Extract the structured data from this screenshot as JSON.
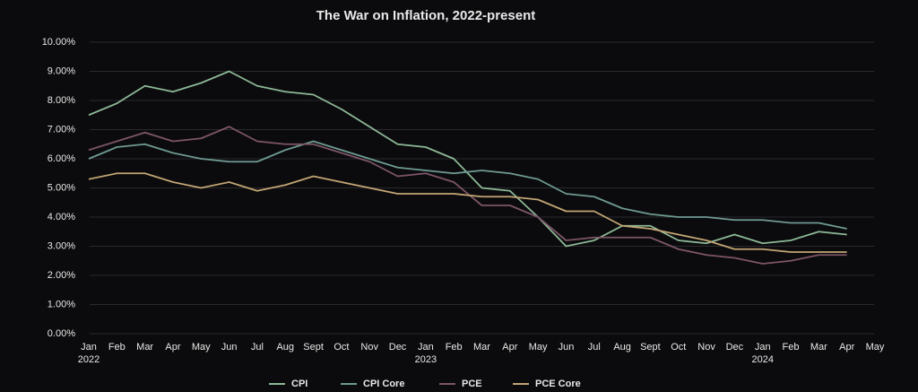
{
  "chart_data": {
    "type": "line",
    "title": "The War on Inflation, 2022-present",
    "categories": [
      "Jan",
      "Feb",
      "Mar",
      "Apr",
      "May",
      "Jun",
      "Jul",
      "Aug",
      "Sept",
      "Oct",
      "Nov",
      "Dec",
      "Jan",
      "Feb",
      "Mar",
      "Apr",
      "May",
      "Jun",
      "Jul",
      "Aug",
      "Sept",
      "Oct",
      "Nov",
      "Dec",
      "Jan",
      "Feb",
      "Mar",
      "Apr",
      "May"
    ],
    "year_labels": [
      "2022",
      null,
      null,
      null,
      null,
      null,
      null,
      null,
      null,
      null,
      null,
      null,
      "2023",
      null,
      null,
      null,
      null,
      null,
      null,
      null,
      null,
      null,
      null,
      null,
      "2024",
      null,
      null,
      null,
      null
    ],
    "ylim": [
      0,
      10
    ],
    "yticks": [
      {
        "value": 0,
        "label": "0.00%"
      },
      {
        "value": 1,
        "label": "1.00%"
      },
      {
        "value": 2,
        "label": "2.00%"
      },
      {
        "value": 3,
        "label": "3.00%"
      },
      {
        "value": 4,
        "label": "4.00%"
      },
      {
        "value": 5,
        "label": "5.00%"
      },
      {
        "value": 6,
        "label": "6.00%"
      },
      {
        "value": 7,
        "label": "7.00%"
      },
      {
        "value": 8,
        "label": "8.00%"
      },
      {
        "value": 9,
        "label": "9.00%"
      },
      {
        "value": 10,
        "label": "10.00%"
      }
    ],
    "grid": true,
    "legend": "bottom",
    "series": [
      {
        "name": "CPI",
        "color": "#8db896",
        "values": [
          7.5,
          7.9,
          8.5,
          8.3,
          8.6,
          9.0,
          8.5,
          8.3,
          8.2,
          7.7,
          7.1,
          6.5,
          6.4,
          6.0,
          5.0,
          4.9,
          4.0,
          3.0,
          3.2,
          3.7,
          3.7,
          3.2,
          3.1,
          3.4,
          3.1,
          3.2,
          3.5,
          3.4,
          null
        ]
      },
      {
        "name": "CPI Core",
        "color": "#6e9a92",
        "values": [
          6.0,
          6.4,
          6.5,
          6.2,
          6.0,
          5.9,
          5.9,
          6.3,
          6.6,
          6.3,
          6.0,
          5.7,
          5.6,
          5.5,
          5.6,
          5.5,
          5.3,
          4.8,
          4.7,
          4.3,
          4.1,
          4.0,
          4.0,
          3.9,
          3.9,
          3.8,
          3.8,
          3.6,
          null
        ]
      },
      {
        "name": "PCE",
        "color": "#7d5566",
        "values": [
          6.3,
          6.6,
          6.9,
          6.6,
          6.7,
          7.1,
          6.6,
          6.5,
          6.5,
          6.2,
          5.9,
          5.4,
          5.5,
          5.2,
          4.4,
          4.4,
          4.0,
          3.2,
          3.3,
          3.3,
          3.3,
          2.9,
          2.7,
          2.6,
          2.4,
          2.5,
          2.7,
          2.7,
          null
        ]
      },
      {
        "name": "PCE Core",
        "color": "#c2a574",
        "values": [
          5.3,
          5.5,
          5.5,
          5.2,
          5.0,
          5.2,
          4.9,
          5.1,
          5.4,
          5.2,
          5.0,
          4.8,
          4.8,
          4.8,
          4.7,
          4.7,
          4.6,
          4.2,
          4.2,
          3.7,
          3.6,
          3.4,
          3.2,
          2.9,
          2.9,
          2.8,
          2.8,
          2.8,
          null
        ]
      }
    ]
  }
}
